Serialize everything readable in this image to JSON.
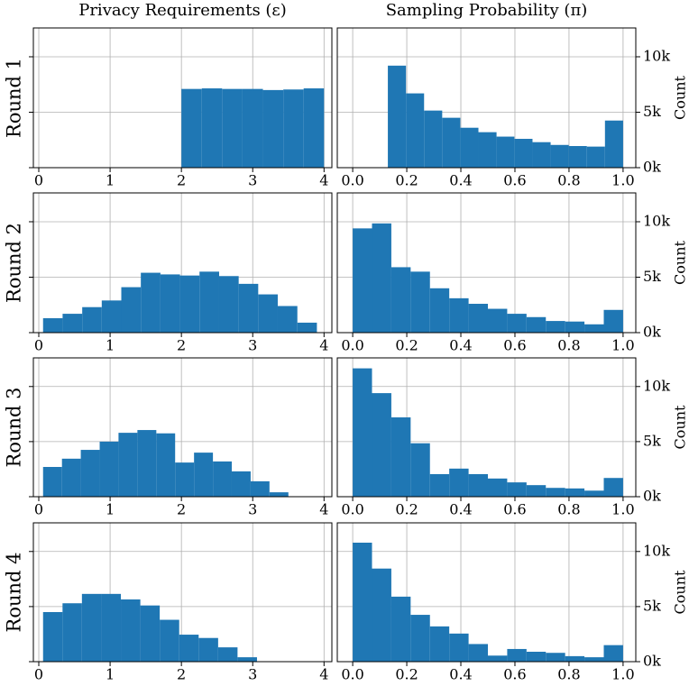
{
  "chart_data": [
    {
      "type": "histogram",
      "title": "Privacy Requirements (ε)",
      "ylabel": "Round 1",
      "color": "#1f77b4",
      "grid": true,
      "ytick_labels": false,
      "bins": [
        2,
        2.286,
        2.571,
        2.857,
        3.143,
        3.429,
        3.714,
        4
      ],
      "counts": [
        7100,
        7150,
        7100,
        7100,
        7000,
        7050,
        7150
      ],
      "xlim": [
        -0.076,
        4.11
      ],
      "xticks": [
        0,
        1,
        2,
        3,
        4
      ],
      "ylim": [
        0,
        12600
      ],
      "yticks": [
        0,
        5000,
        10000
      ]
    },
    {
      "type": "histogram",
      "title": "Sampling Probability (π)",
      "ylabel": "Count",
      "color": "#1f77b4",
      "grid": true,
      "ytick_labels": true,
      "bins": [
        0.13,
        0.197,
        0.264,
        0.331,
        0.398,
        0.465,
        0.532,
        0.598,
        0.665,
        0.732,
        0.799,
        0.866,
        0.933,
        1.0
      ],
      "counts": [
        9200,
        6700,
        5150,
        4500,
        3600,
        3200,
        2800,
        2600,
        2300,
        2050,
        1950,
        1900,
        4250
      ],
      "xlim": [
        -0.057,
        1.047
      ],
      "xticks": [
        {
          "value": 0,
          "label": "0.0"
        },
        0.2,
        0.4,
        0.6,
        0.8,
        {
          "value": 1,
          "label": "1.0"
        }
      ],
      "ylim": [
        0,
        12600
      ],
      "yticks": [
        {
          "value": 0,
          "label": "0k"
        },
        {
          "value": 5000,
          "label": "5k"
        },
        {
          "value": 10000,
          "label": "10k"
        }
      ]
    },
    {
      "type": "histogram",
      "ylabel": "Round 2",
      "color": "#1f77b4",
      "grid": true,
      "ytick_labels": false,
      "bins": [
        0.06,
        0.334,
        0.609,
        0.883,
        1.157,
        1.431,
        1.706,
        1.98,
        2.254,
        2.529,
        2.803,
        3.077,
        3.351,
        3.626,
        3.9
      ],
      "counts": [
        1300,
        1700,
        2300,
        2900,
        4100,
        5400,
        5250,
        5150,
        5500,
        5100,
        4400,
        3450,
        2400,
        900
      ],
      "xlim": [
        -0.076,
        4.11
      ],
      "xticks": [
        0,
        1,
        2,
        3,
        4
      ],
      "ylim": [
        0,
        12600
      ],
      "yticks": [
        0,
        5000,
        10000
      ]
    },
    {
      "type": "histogram",
      "ylabel": "Count",
      "color": "#1f77b4",
      "grid": true,
      "ytick_labels": true,
      "bins": [
        0,
        0.0714,
        0.1429,
        0.2143,
        0.2857,
        0.3571,
        0.4286,
        0.5,
        0.5714,
        0.6429,
        0.7143,
        0.7857,
        0.8571,
        0.9286,
        1
      ],
      "counts": [
        9400,
        9850,
        5900,
        5500,
        4000,
        3100,
        2600,
        2150,
        1700,
        1400,
        1050,
        1000,
        750,
        2050
      ],
      "xlim": [
        -0.057,
        1.047
      ],
      "xticks": [
        {
          "value": 0,
          "label": "0.0"
        },
        0.2,
        0.4,
        0.6,
        0.8,
        {
          "value": 1,
          "label": "1.0"
        }
      ],
      "ylim": [
        0,
        12600
      ],
      "yticks": [
        {
          "value": 0,
          "label": "0k"
        },
        {
          "value": 5000,
          "label": "5k"
        },
        {
          "value": 10000,
          "label": "10k"
        }
      ]
    },
    {
      "type": "histogram",
      "ylabel": "Round 3",
      "color": "#1f77b4",
      "grid": true,
      "ytick_labels": false,
      "bins": [
        0.06,
        0.325,
        0.589,
        0.854,
        1.118,
        1.383,
        1.648,
        1.912,
        2.177,
        2.442,
        2.706,
        2.971,
        3.235,
        3.5
      ],
      "counts": [
        2700,
        3450,
        4250,
        5000,
        5800,
        6050,
        5750,
        3100,
        4000,
        3200,
        2300,
        1400,
        400
      ],
      "xlim": [
        -0.076,
        4.11
      ],
      "xticks": [
        0,
        1,
        2,
        3,
        4
      ],
      "ylim": [
        0,
        12600
      ],
      "yticks": [
        0,
        5000,
        10000
      ]
    },
    {
      "type": "histogram",
      "ylabel": "Count",
      "color": "#1f77b4",
      "grid": true,
      "ytick_labels": true,
      "bins": [
        0,
        0.0714,
        0.1429,
        0.2143,
        0.2857,
        0.3571,
        0.4286,
        0.5,
        0.5714,
        0.6429,
        0.7143,
        0.7857,
        0.8571,
        0.9286,
        1
      ],
      "counts": [
        11650,
        9400,
        7200,
        4850,
        2050,
        2550,
        2050,
        1650,
        1300,
        1050,
        800,
        750,
        550,
        1700
      ],
      "xlim": [
        -0.057,
        1.047
      ],
      "xticks": [
        {
          "value": 0,
          "label": "0.0"
        },
        0.2,
        0.4,
        0.6,
        0.8,
        {
          "value": 1,
          "label": "1.0"
        }
      ],
      "ylim": [
        0,
        12600
      ],
      "yticks": [
        {
          "value": 0,
          "label": "0k"
        },
        {
          "value": 5000,
          "label": "5k"
        },
        {
          "value": 10000,
          "label": "10k"
        }
      ]
    },
    {
      "type": "histogram",
      "ylabel": "Round 4",
      "color": "#1f77b4",
      "grid": true,
      "ytick_labels": false,
      "bins": [
        0.06,
        0.333,
        0.605,
        0.878,
        1.151,
        1.424,
        1.696,
        1.969,
        2.242,
        2.515,
        2.787,
        3.06
      ],
      "counts": [
        4500,
        5300,
        6150,
        6150,
        5650,
        5100,
        3800,
        2450,
        2150,
        1300,
        400
      ],
      "xlim": [
        -0.076,
        4.11
      ],
      "xticks": [
        0,
        1,
        2,
        3,
        4
      ],
      "ylim": [
        0,
        12600
      ],
      "yticks": [
        0,
        5000,
        10000
      ]
    },
    {
      "type": "histogram",
      "ylabel": "Count",
      "color": "#1f77b4",
      "grid": true,
      "ytick_labels": true,
      "bins": [
        0,
        0.0714,
        0.1429,
        0.2143,
        0.2857,
        0.3571,
        0.4286,
        0.5,
        0.5714,
        0.6429,
        0.7143,
        0.7857,
        0.8571,
        0.9286,
        1
      ],
      "counts": [
        10800,
        8450,
        5900,
        4250,
        3200,
        2550,
        1600,
        550,
        1150,
        900,
        800,
        500,
        400,
        1500
      ],
      "xlim": [
        -0.057,
        1.047
      ],
      "xticks": [
        {
          "value": 0,
          "label": "0.0"
        },
        0.2,
        0.4,
        0.6,
        0.8,
        {
          "value": 1,
          "label": "1.0"
        }
      ],
      "ylim": [
        0,
        12600
      ],
      "yticks": [
        {
          "value": 0,
          "label": "0k"
        },
        {
          "value": 5000,
          "label": "5k"
        },
        {
          "value": 10000,
          "label": "10k"
        }
      ]
    }
  ]
}
